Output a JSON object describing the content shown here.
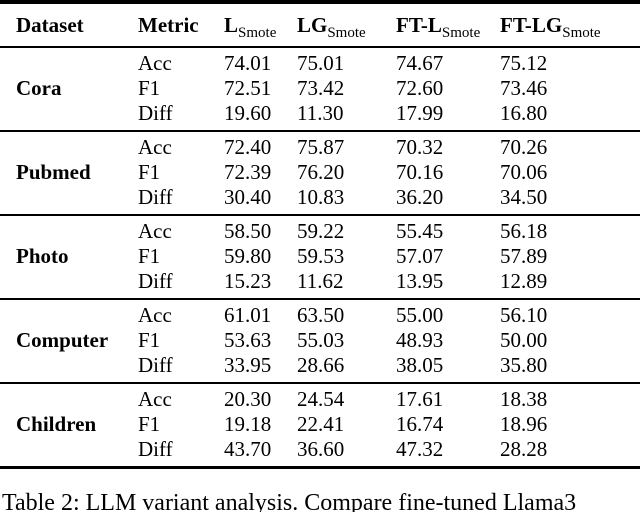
{
  "table": {
    "header": {
      "dataset": "Dataset",
      "metric": "Metric"
    },
    "value_columns": [
      {
        "main": "L",
        "sub": "Smote"
      },
      {
        "main": "LG",
        "sub": "Smote"
      },
      {
        "main": "FT-L",
        "sub": "Smote"
      },
      {
        "main": "FT-LG",
        "sub": "Smote"
      }
    ],
    "groups": [
      {
        "dataset": "Cora",
        "rows": [
          {
            "metric": "Acc",
            "values": [
              "74.01",
              "75.01",
              "74.67",
              "75.12"
            ]
          },
          {
            "metric": "F1",
            "values": [
              "72.51",
              "73.42",
              "72.60",
              "73.46"
            ]
          },
          {
            "metric": "Diff",
            "values": [
              "19.60",
              "11.30",
              "17.99",
              "16.80"
            ]
          }
        ]
      },
      {
        "dataset": "Pubmed",
        "rows": [
          {
            "metric": "Acc",
            "values": [
              "72.40",
              "75.87",
              "70.32",
              "70.26"
            ]
          },
          {
            "metric": "F1",
            "values": [
              "72.39",
              "76.20",
              "70.16",
              "70.06"
            ]
          },
          {
            "metric": "Diff",
            "values": [
              "30.40",
              "10.83",
              "36.20",
              "34.50"
            ]
          }
        ]
      },
      {
        "dataset": "Photo",
        "rows": [
          {
            "metric": "Acc",
            "values": [
              "58.50",
              "59.22",
              "55.45",
              "56.18"
            ]
          },
          {
            "metric": "F1",
            "values": [
              "59.80",
              "59.53",
              "57.07",
              "57.89"
            ]
          },
          {
            "metric": "Diff",
            "values": [
              "15.23",
              "11.62",
              "13.95",
              "12.89"
            ]
          }
        ]
      },
      {
        "dataset": "Computer",
        "rows": [
          {
            "metric": "Acc",
            "values": [
              "61.01",
              "63.50",
              "55.00",
              "56.10"
            ]
          },
          {
            "metric": "F1",
            "values": [
              "53.63",
              "55.03",
              "48.93",
              "50.00"
            ]
          },
          {
            "metric": "Diff",
            "values": [
              "33.95",
              "28.66",
              "38.05",
              "35.80"
            ]
          }
        ]
      },
      {
        "dataset": "Children",
        "rows": [
          {
            "metric": "Acc",
            "values": [
              "20.30",
              "24.54",
              "17.61",
              "18.38"
            ]
          },
          {
            "metric": "F1",
            "values": [
              "19.18",
              "22.41",
              "16.74",
              "18.96"
            ]
          },
          {
            "metric": "Diff",
            "values": [
              "43.70",
              "36.60",
              "47.32",
              "28.28"
            ]
          }
        ]
      }
    ]
  },
  "caption": "Table 2: LLM variant analysis. Compare fine-tuned Llama3"
}
